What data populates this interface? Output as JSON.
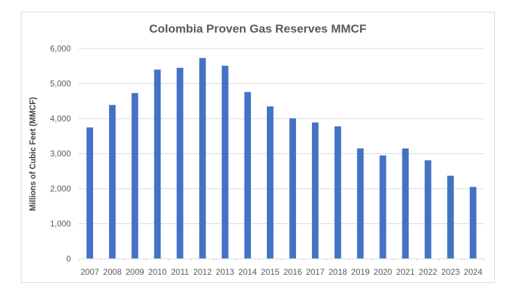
{
  "chart_data": {
    "type": "bar",
    "title": "Colombia Proven Gas Reserves MMCF",
    "xlabel": "",
    "ylabel": "Millions of Cubic Feet (MMCF)",
    "categories": [
      "2007",
      "2008",
      "2009",
      "2010",
      "2011",
      "2012",
      "2013",
      "2014",
      "2015",
      "2016",
      "2017",
      "2018",
      "2019",
      "2020",
      "2021",
      "2022",
      "2023",
      "2024"
    ],
    "series": [
      {
        "name": "Proven Gas Reserves",
        "color": "#4472C4",
        "values": [
          3750,
          4390,
          4730,
          5400,
          5450,
          5730,
          5510,
          4760,
          4350,
          4010,
          3890,
          3780,
          3150,
          2950,
          3150,
          2810,
          2370,
          2050
        ]
      }
    ],
    "ylim": [
      0,
      6000
    ],
    "yticks": [
      0,
      1000,
      2000,
      3000,
      4000,
      5000,
      6000
    ],
    "ytick_labels": [
      "0",
      "1,000",
      "2,000",
      "3,000",
      "4,000",
      "5,000",
      "6,000"
    ],
    "grid": true,
    "legend": "none"
  }
}
